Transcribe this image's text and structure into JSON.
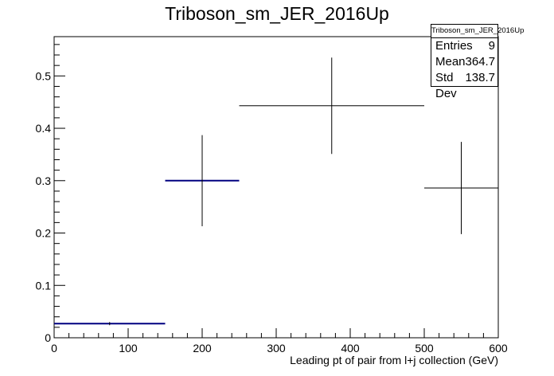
{
  "title": "Triboson_sm_JER_2016Up",
  "stats_box": {
    "name": "Triboson_sm_JER_2016Up",
    "entries_label": "Entries",
    "entries_value": "9",
    "mean_label": "Mean",
    "mean_value": "364.7",
    "stddev_label": "Std Dev",
    "stddev_value": "138.7"
  },
  "colors": {
    "highlight": "#000080",
    "default": "#000000"
  },
  "chart_data": {
    "type": "scatter",
    "title": "Triboson_sm_JER_2016Up",
    "xlabel": "Leading pt of pair from l+j collection (GeV)",
    "ylabel": "",
    "xlim": [
      0,
      600
    ],
    "ylim": [
      0,
      0.575
    ],
    "x_ticks": [
      0,
      100,
      200,
      300,
      400,
      500,
      600
    ],
    "y_ticks": [
      0,
      0.1,
      0.2,
      0.3,
      0.4,
      0.5
    ],
    "y_tick_labels": [
      "0",
      "0.1",
      "0.2",
      "0.3",
      "0.4",
      "0.5"
    ],
    "grid": false,
    "points": [
      {
        "x_low": 0,
        "x_high": 150,
        "x": 75,
        "y": 0.027,
        "y_err": 0.003,
        "highlight": true
      },
      {
        "x_low": 150,
        "x_high": 250,
        "x": 200,
        "y": 0.3,
        "y_err": 0.087,
        "highlight": true
      },
      {
        "x_low": 250,
        "x_high": 500,
        "x": 375,
        "y": 0.443,
        "y_err": 0.092,
        "highlight": false
      },
      {
        "x_low": 500,
        "x_high": 600,
        "x": 550,
        "y": 0.286,
        "y_err": 0.088,
        "highlight": false
      }
    ]
  }
}
